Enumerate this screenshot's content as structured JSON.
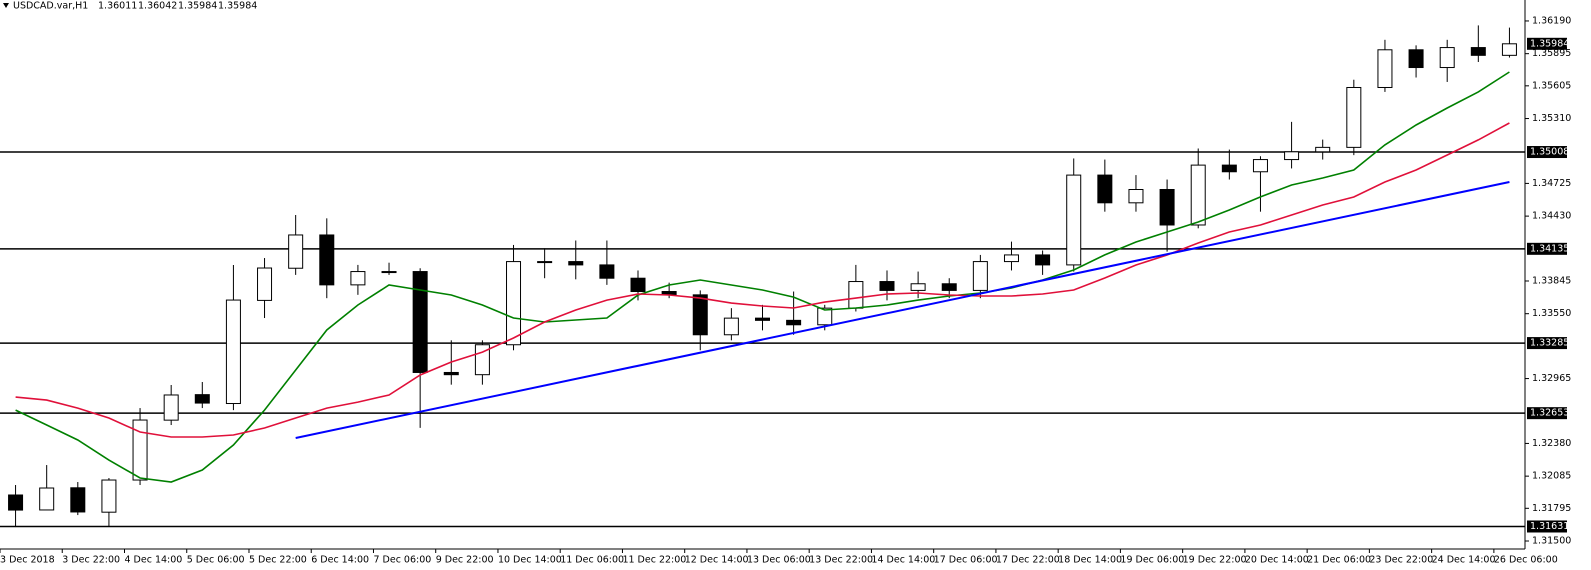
{
  "chart_data": {
    "type": "candlestick",
    "symbol": "USDCAD.var,H1",
    "ohlc_header": [
      1.36011,
      1.36042,
      1.35984,
      1.35984
    ],
    "categories": [
      "3 Dec 2018",
      null,
      "3 Dec 22:00",
      null,
      "4 Dec 14:00",
      null,
      "5 Dec 06:00",
      null,
      "5 Dec 22:00",
      null,
      "6 Dec 14:00",
      null,
      "7 Dec 06:00",
      null,
      "9 Dec 22:00",
      null,
      "10 Dec 14:00",
      null,
      "11 Dec 06:00",
      null,
      "11 Dec 22:00",
      null,
      "12 Dec 14:00",
      null,
      "13 Dec 06:00",
      null,
      "13 Dec 22:00",
      null,
      "14 Dec 14:00",
      null,
      "17 Dec 06:00",
      null,
      "17 Dec 22:00",
      null,
      "18 Dec 14:00",
      null,
      "19 Dec 06:00",
      null,
      "19 Dec 22:00",
      null,
      "20 Dec 14:00",
      null,
      "21 Dec 06:00",
      null,
      "23 Dec 22:00",
      null,
      "24 Dec 14:00",
      null,
      "26 Dec 06:00"
    ],
    "open": [
      1.31915,
      1.3178,
      1.3198,
      1.3176,
      1.3205,
      1.3259,
      1.3282,
      1.3274,
      1.3367,
      1.3396,
      1.3426,
      1.3381,
      1.3393,
      1.3393,
      1.3302,
      1.33,
      1.3327,
      1.3402,
      1.3402,
      1.3399,
      1.3387,
      1.3375,
      1.3372,
      1.3336,
      1.3351,
      1.3349,
      1.3345,
      1.336,
      1.3384,
      1.3376,
      1.3382,
      1.3376,
      1.3402,
      1.3408,
      1.3399,
      1.348,
      1.3455,
      1.3467,
      1.3435,
      1.3489,
      1.3483,
      1.3494,
      1.3501,
      1.3505,
      1.3559,
      1.3593,
      1.3577,
      1.3595,
      1.3588
    ],
    "high": [
      1.32005,
      1.32185,
      1.32032,
      1.32068,
      1.32699,
      1.32907,
      1.32934,
      1.33989,
      1.34052,
      1.3444,
      1.3441,
      1.3399,
      1.3401,
      1.3396,
      1.3331,
      1.3331,
      1.3417,
      1.3414,
      1.3421,
      1.3421,
      1.3394,
      1.3383,
      1.3376,
      1.336,
      1.3363,
      1.3375,
      1.3363,
      1.3399,
      1.3394,
      1.3393,
      1.3387,
      1.3408,
      1.342,
      1.3412,
      1.3495,
      1.3494,
      1.348,
      1.3476,
      1.3504,
      1.3503,
      1.3497,
      1.3528,
      1.3512,
      1.3566,
      1.3602,
      1.3597,
      1.3602,
      1.3615,
      1.3613
    ],
    "low": [
      1.31626,
      1.3178,
      1.31734,
      1.31635,
      1.32005,
      1.32546,
      1.32699,
      1.3268,
      1.33511,
      1.339,
      1.3369,
      1.3372,
      1.339,
      1.3252,
      1.3291,
      1.3291,
      1.3322,
      1.3387,
      1.3386,
      1.3381,
      1.3367,
      1.3369,
      1.3322,
      1.3331,
      1.334,
      1.3336,
      1.334,
      1.3357,
      1.3367,
      1.3369,
      1.3369,
      1.3369,
      1.3394,
      1.339,
      1.3393,
      1.3447,
      1.3447,
      1.3411,
      1.3432,
      1.3476,
      1.3447,
      1.3486,
      1.3494,
      1.3498,
      1.3555,
      1.3568,
      1.3564,
      1.3582,
      1.3586
    ],
    "close": [
      1.31779,
      1.31978,
      1.31762,
      1.3205,
      1.32591,
      1.32817,
      1.32744,
      1.33673,
      1.33962,
      1.3426,
      1.3381,
      1.3393,
      1.3393,
      1.3302,
      1.33,
      1.3327,
      1.3402,
      1.3402,
      1.3399,
      1.3387,
      1.3375,
      1.3372,
      1.3336,
      1.3351,
      1.3349,
      1.3345,
      1.336,
      1.3384,
      1.3376,
      1.3382,
      1.3376,
      1.3402,
      1.3408,
      1.3399,
      1.348,
      1.3455,
      1.3467,
      1.3435,
      1.3489,
      1.3483,
      1.3494,
      1.3501,
      1.3505,
      1.3559,
      1.3593,
      1.3577,
      1.3595,
      1.3588,
      1.35984
    ],
    "series": [
      {
        "color": "#008000",
        "values": [
          1.32681,
          1.32546,
          1.32411,
          1.3223,
          1.32068,
          1.32032,
          1.3214,
          1.32366,
          1.32681,
          1.33042,
          1.33403,
          1.33628,
          1.33809,
          1.33764,
          1.33719,
          1.33628,
          1.33511,
          1.33475,
          1.33493,
          1.33511,
          1.33719,
          1.33809,
          1.33854,
          1.33809,
          1.33764,
          1.337,
          1.33583,
          1.33601,
          1.33628,
          1.33673,
          1.3371,
          1.33737,
          1.33782,
          1.33854,
          1.33944,
          1.3408,
          1.34197,
          1.34287,
          1.34377,
          1.34485,
          1.34603,
          1.34711,
          1.34774,
          1.34846,
          1.35072,
          1.35252,
          1.35405,
          1.3555,
          1.3573
        ]
      },
      {
        "color": "#e0103a",
        "values": [
          1.32798,
          1.32771,
          1.32699,
          1.32609,
          1.32483,
          1.32438,
          1.32438,
          1.32456,
          1.32519,
          1.32609,
          1.32699,
          1.32753,
          1.32817,
          1.32997,
          1.33114,
          1.33204,
          1.33331,
          1.33475,
          1.33583,
          1.33673,
          1.33728,
          1.33719,
          1.33691,
          1.33646,
          1.33619,
          1.33601,
          1.33655,
          1.33691,
          1.33728,
          1.33737,
          1.33719,
          1.3371,
          1.3371,
          1.33728,
          1.33764,
          1.33872,
          1.33989,
          1.34079,
          1.34188,
          1.34287,
          1.3435,
          1.3444,
          1.3453,
          1.34602,
          1.34738,
          1.34846,
          1.34981,
          1.35117,
          1.3527
        ]
      }
    ],
    "trendline": {
      "color": "#0000ff",
      "x": [
        9,
        48
      ],
      "y": [
        1.32429,
        1.34738
      ]
    },
    "levels": [
      1.35008,
      1.34135,
      1.33285,
      1.32653,
      1.31631
    ],
    "last_price": 1.35984,
    "ylim": [
      1.31437,
      1.36379
    ],
    "yticks": [
      {
        "value": 1.3619,
        "label": "1.36190"
      },
      1.35895,
      1.35605,
      {
        "value": 1.3531,
        "label": "1.35310"
      },
      1.34725,
      {
        "value": 1.3443,
        "label": "1.34430"
      },
      1.33845,
      {
        "value": 1.3355,
        "label": "1.33550"
      },
      1.32965,
      {
        "value": 1.3238,
        "label": "1.32380"
      },
      1.32085,
      1.31795,
      {
        "value": 1.315,
        "label": "1.31500"
      }
    ]
  }
}
